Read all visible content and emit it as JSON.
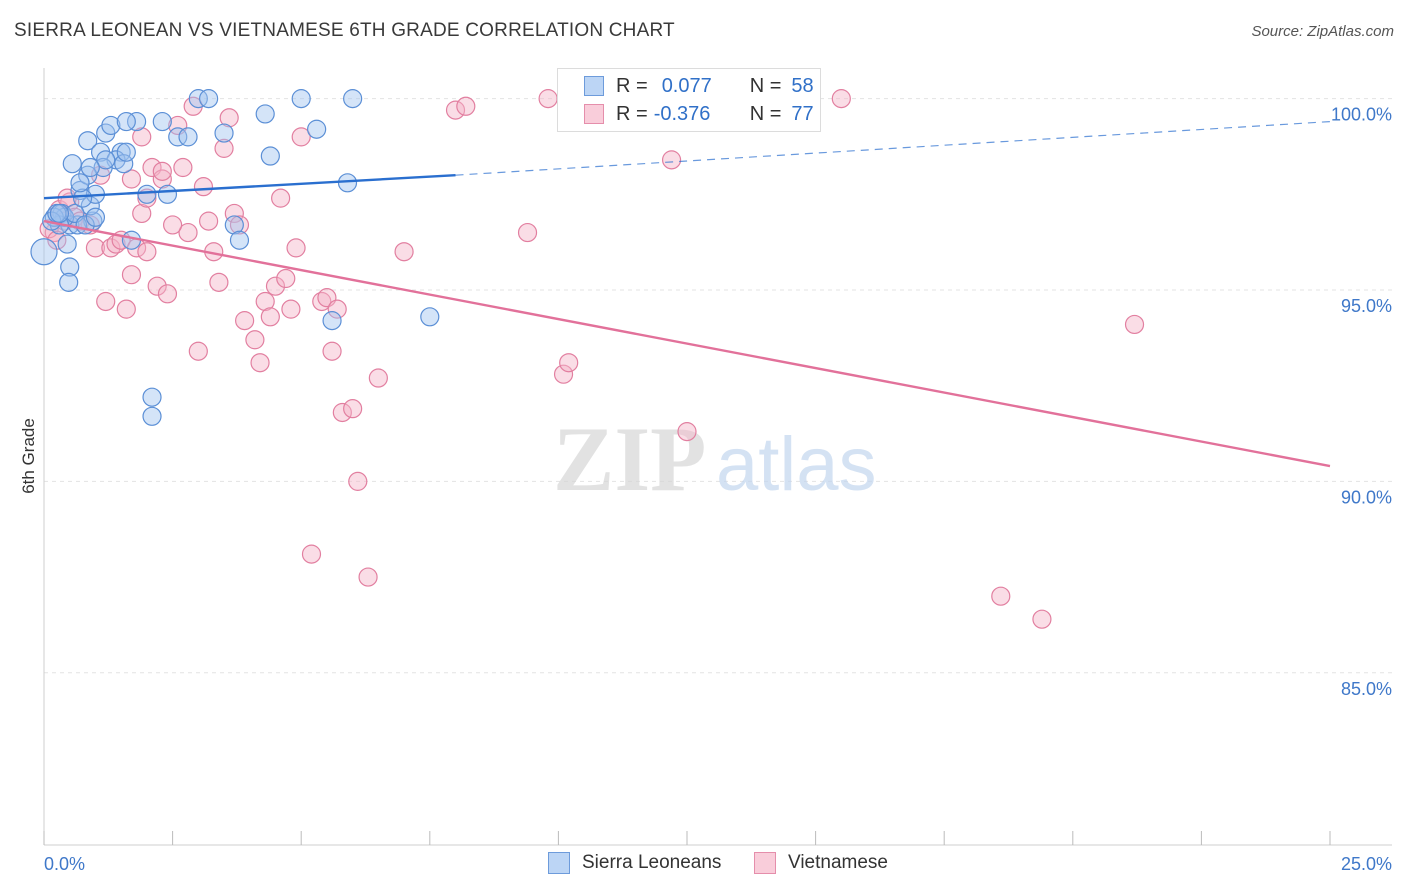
{
  "title": "SIERRA LEONEAN VS VIETNAMESE 6TH GRADE CORRELATION CHART",
  "source": "Source: ZipAtlas.com",
  "watermark": {
    "zip": "ZIP",
    "atlas": "atlas"
  },
  "colors": {
    "blue_fill": "#9fc3ef",
    "blue_stroke": "#5b8fd6",
    "blue_line": "#2a6fcf",
    "pink_fill": "#f4b4c7",
    "pink_stroke": "#e27fa0",
    "pink_line": "#e2719a",
    "tick_label": "#3f78c9",
    "grid": "#e3e3e3"
  },
  "legend": {
    "rows": [
      {
        "r_label": "R =",
        "r_value": "0.077",
        "n_label": "N =",
        "n_value": "58"
      },
      {
        "r_label": "R =",
        "r_value": "-0.376",
        "n_label": "N =",
        "n_value": "77"
      }
    ]
  },
  "bottom_legend": {
    "series1": "Sierra Leoneans",
    "series2": "Vietnamese"
  },
  "chart_data": {
    "type": "scatter",
    "title": "SIERRA LEONEAN VS VIETNAMESE 6TH GRADE CORRELATION CHART",
    "xlabel": "",
    "ylabel": "6th Grade",
    "xlim": [
      0,
      25
    ],
    "ylim": [
      80.5,
      100.8
    ],
    "x_tick_labels": [
      "0.0%",
      "25.0%"
    ],
    "y_ticks": [
      100,
      95,
      90,
      85
    ],
    "y_tick_labels": [
      "100.0%",
      "95.0%",
      "90.0%",
      "85.0%"
    ],
    "grid": true,
    "series": [
      {
        "name": "Sierra Leoneans",
        "r": 0.077,
        "n": 58,
        "trend": {
          "x0": 0,
          "y0": 97.4,
          "x1": 8.0,
          "y1": 98.0,
          "x1_dashed": 25,
          "y1_dashed": 99.4
        },
        "points": [
          [
            0.0,
            96.0,
            26
          ],
          [
            0.1,
            96.9,
            12
          ],
          [
            0.2,
            96.8,
            10
          ],
          [
            0.3,
            96.8,
            10
          ],
          [
            0.4,
            96.8,
            10
          ],
          [
            0.4,
            96.1,
            8
          ],
          [
            0.5,
            95.6,
            8
          ],
          [
            0.5,
            95.2,
            8
          ],
          [
            0.6,
            98.3,
            8
          ],
          [
            0.6,
            96.8,
            10
          ],
          [
            0.7,
            96.7,
            8
          ],
          [
            0.7,
            97.5,
            8
          ],
          [
            0.8,
            97.7,
            8
          ],
          [
            0.8,
            97.9,
            8
          ],
          [
            0.9,
            98.3,
            8
          ],
          [
            0.9,
            98.8,
            8
          ],
          [
            1.0,
            97.5,
            8
          ],
          [
            1.0,
            97.2,
            8
          ],
          [
            1.0,
            96.9,
            8
          ],
          [
            1.0,
            96.8,
            8
          ],
          [
            1.0,
            97.9,
            8
          ],
          [
            1.1,
            99.1,
            8
          ],
          [
            1.1,
            98.2,
            8
          ],
          [
            1.2,
            98.4,
            8
          ],
          [
            1.2,
            98.8,
            8
          ],
          [
            1.3,
            98.4,
            8
          ],
          [
            1.3,
            99.1,
            8
          ],
          [
            1.4,
            98.3,
            8
          ],
          [
            1.5,
            99.3,
            8
          ],
          [
            1.5,
            98.3,
            8
          ],
          [
            1.5,
            98.5,
            8
          ],
          [
            1.6,
            99.3,
            8
          ],
          [
            1.6,
            98.4,
            8
          ],
          [
            1.6,
            98.3,
            8
          ],
          [
            1.6,
            98.5,
            8
          ],
          [
            1.6,
            98.3,
            8
          ],
          [
            1.6,
            98.4,
            8
          ],
          [
            1.6,
            98.3,
            8
          ],
          [
            1.6,
            98.4,
            8
          ],
          [
            1.6,
            98.5,
            8
          ],
          [
            1.6,
            98.3,
            8
          ],
          [
            1.6,
            98.2,
            8
          ],
          [
            1.6,
            98.3,
            8
          ],
          [
            1.6,
            98.4,
            8
          ],
          [
            1.6,
            98.5,
            8
          ],
          [
            1.6,
            98.4,
            8
          ],
          [
            1.6,
            98.3,
            8
          ],
          [
            1.6,
            98.4,
            8
          ],
          [
            1.6,
            98.3,
            8
          ],
          [
            1.6,
            98.2,
            8
          ],
          [
            1.6,
            98.3,
            8
          ],
          [
            1.6,
            98.4,
            8
          ],
          [
            1.6,
            98.5,
            8
          ],
          [
            1.6,
            98.4,
            8
          ],
          [
            1.6,
            98.3,
            8
          ],
          [
            1.6,
            98.4,
            8
          ],
          [
            1.6,
            98.3,
            8
          ],
          [
            1.6,
            98.2,
            8
          ]
        ]
      },
      {
        "name": "Vietnamese",
        "r": -0.376,
        "n": 77,
        "trend": {
          "x0": 0,
          "y0": 96.8,
          "x1": 25,
          "y1": 90.4
        },
        "points": [
          [
            0.2,
            96.5,
            9
          ],
          [
            0.2,
            97.0,
            9
          ],
          [
            0.3,
            96.9,
            9
          ],
          [
            0.4,
            96.6,
            9
          ],
          [
            0.4,
            97.2,
            9
          ],
          [
            0.5,
            96.8,
            9
          ],
          [
            0.6,
            96.7,
            9
          ],
          [
            0.8,
            96.1,
            9
          ],
          [
            1.0,
            96.0,
            9
          ],
          [
            1.0,
            94.7,
            9
          ],
          [
            1.2,
            96.1,
            9
          ],
          [
            1.3,
            96.1,
            9
          ],
          [
            1.3,
            96.2,
            9
          ],
          [
            1.4,
            96.3,
            9
          ],
          [
            1.5,
            95.4,
            9
          ],
          [
            1.6,
            96.1,
            9
          ],
          [
            1.6,
            96.1,
            9
          ],
          [
            1.6,
            96.1,
            9
          ],
          [
            1.6,
            96.1,
            9
          ],
          [
            1.6,
            96.1,
            9
          ],
          [
            1.6,
            96.1,
            9
          ],
          [
            1.6,
            96.1,
            9
          ],
          [
            1.6,
            96.1,
            9
          ],
          [
            1.6,
            96.1,
            9
          ],
          [
            1.6,
            96.1,
            9
          ],
          [
            1.6,
            96.1,
            9
          ],
          [
            1.6,
            96.1,
            9
          ],
          [
            1.6,
            96.1,
            9
          ],
          [
            1.6,
            96.1,
            9
          ],
          [
            1.6,
            96.1,
            9
          ],
          [
            1.6,
            96.1,
            9
          ],
          [
            1.6,
            96.1,
            9
          ],
          [
            1.6,
            96.1,
            9
          ],
          [
            1.6,
            96.1,
            9
          ],
          [
            1.6,
            96.1,
            9
          ],
          [
            1.6,
            96.1,
            9
          ],
          [
            1.6,
            96.1,
            9
          ],
          [
            1.6,
            96.1,
            9
          ],
          [
            1.6,
            96.1,
            9
          ],
          [
            1.6,
            96.1,
            9
          ],
          [
            1.6,
            96.1,
            9
          ],
          [
            1.6,
            96.1,
            9
          ],
          [
            1.6,
            96.1,
            9
          ],
          [
            1.6,
            96.1,
            9
          ],
          [
            1.6,
            96.1,
            9
          ],
          [
            1.6,
            96.1,
            9
          ],
          [
            1.6,
            96.1,
            9
          ],
          [
            1.6,
            96.1,
            9
          ],
          [
            1.6,
            96.1,
            9
          ],
          [
            1.6,
            96.1,
            9
          ],
          [
            1.6,
            96.1,
            9
          ],
          [
            1.6,
            96.1,
            9
          ],
          [
            1.6,
            96.1,
            9
          ],
          [
            1.6,
            96.1,
            9
          ],
          [
            1.6,
            96.1,
            9
          ],
          [
            1.6,
            96.1,
            9
          ],
          [
            1.6,
            96.1,
            9
          ],
          [
            1.6,
            96.1,
            9
          ],
          [
            1.6,
            96.1,
            9
          ],
          [
            1.6,
            96.1,
            9
          ],
          [
            1.6,
            96.1,
            9
          ],
          [
            1.6,
            96.1,
            9
          ],
          [
            1.6,
            96.1,
            9
          ],
          [
            1.6,
            96.1,
            9
          ],
          [
            1.6,
            96.1,
            9
          ],
          [
            1.6,
            96.1,
            9
          ],
          [
            1.6,
            96.1,
            9
          ],
          [
            1.6,
            96.1,
            9
          ],
          [
            1.6,
            96.1,
            9
          ],
          [
            1.6,
            96.1,
            9
          ],
          [
            1.6,
            96.1,
            9
          ],
          [
            1.6,
            96.1,
            9
          ],
          [
            1.6,
            96.1,
            9
          ],
          [
            1.6,
            96.1,
            9
          ],
          [
            1.6,
            96.1,
            9
          ],
          [
            1.6,
            96.1,
            9
          ],
          [
            1.6,
            96.1,
            9
          ]
        ]
      }
    ]
  }
}
